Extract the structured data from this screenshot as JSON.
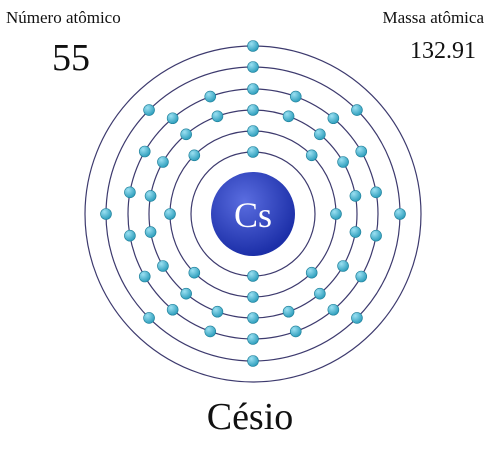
{
  "element": {
    "atomic_number_label": "Número atômico",
    "atomic_number": "55",
    "mass_label": "Massa atômica",
    "mass": "132.91",
    "symbol": "Cs",
    "name": "Césio"
  },
  "shells": [
    2,
    8,
    18,
    18,
    8,
    1
  ],
  "colors": {
    "nucleus": "#1c2fa8",
    "nucleus_highlight": "#5a6de0",
    "electron": "#2f9fbd",
    "electron_highlight": "#9be0f2",
    "orbit": "#3d3a6e"
  }
}
